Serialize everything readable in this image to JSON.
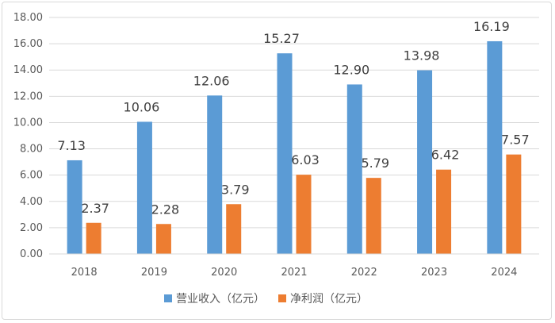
{
  "chart_data": {
    "type": "bar",
    "title": "",
    "xlabel": "",
    "ylabel": "",
    "ylim": [
      0,
      18
    ],
    "yticks": [
      "0.00",
      "2.00",
      "4.00",
      "6.00",
      "8.00",
      "10.00",
      "12.00",
      "14.00",
      "16.00",
      "18.00"
    ],
    "categories": [
      "2018",
      "2019",
      "2020",
      "2021",
      "2022",
      "2023",
      "2024"
    ],
    "series": [
      {
        "name": "营业收入（亿元）",
        "color": "#5b9bd5",
        "values": [
          7.13,
          10.06,
          12.06,
          15.27,
          12.9,
          13.98,
          16.19
        ],
        "labels": [
          "7.13",
          "10.06",
          "12.06",
          "15.27",
          "12.90",
          "13.98",
          "16.19"
        ]
      },
      {
        "name": "净利润（亿元）",
        "color": "#ed7d31",
        "values": [
          2.37,
          2.28,
          3.79,
          6.03,
          5.79,
          6.42,
          7.57
        ],
        "labels": [
          "2.37",
          "2.28",
          "3.79",
          "6.03",
          "5.79",
          "6.42",
          "7.57"
        ]
      }
    ],
    "grid": true,
    "legend": "bottom-center"
  }
}
